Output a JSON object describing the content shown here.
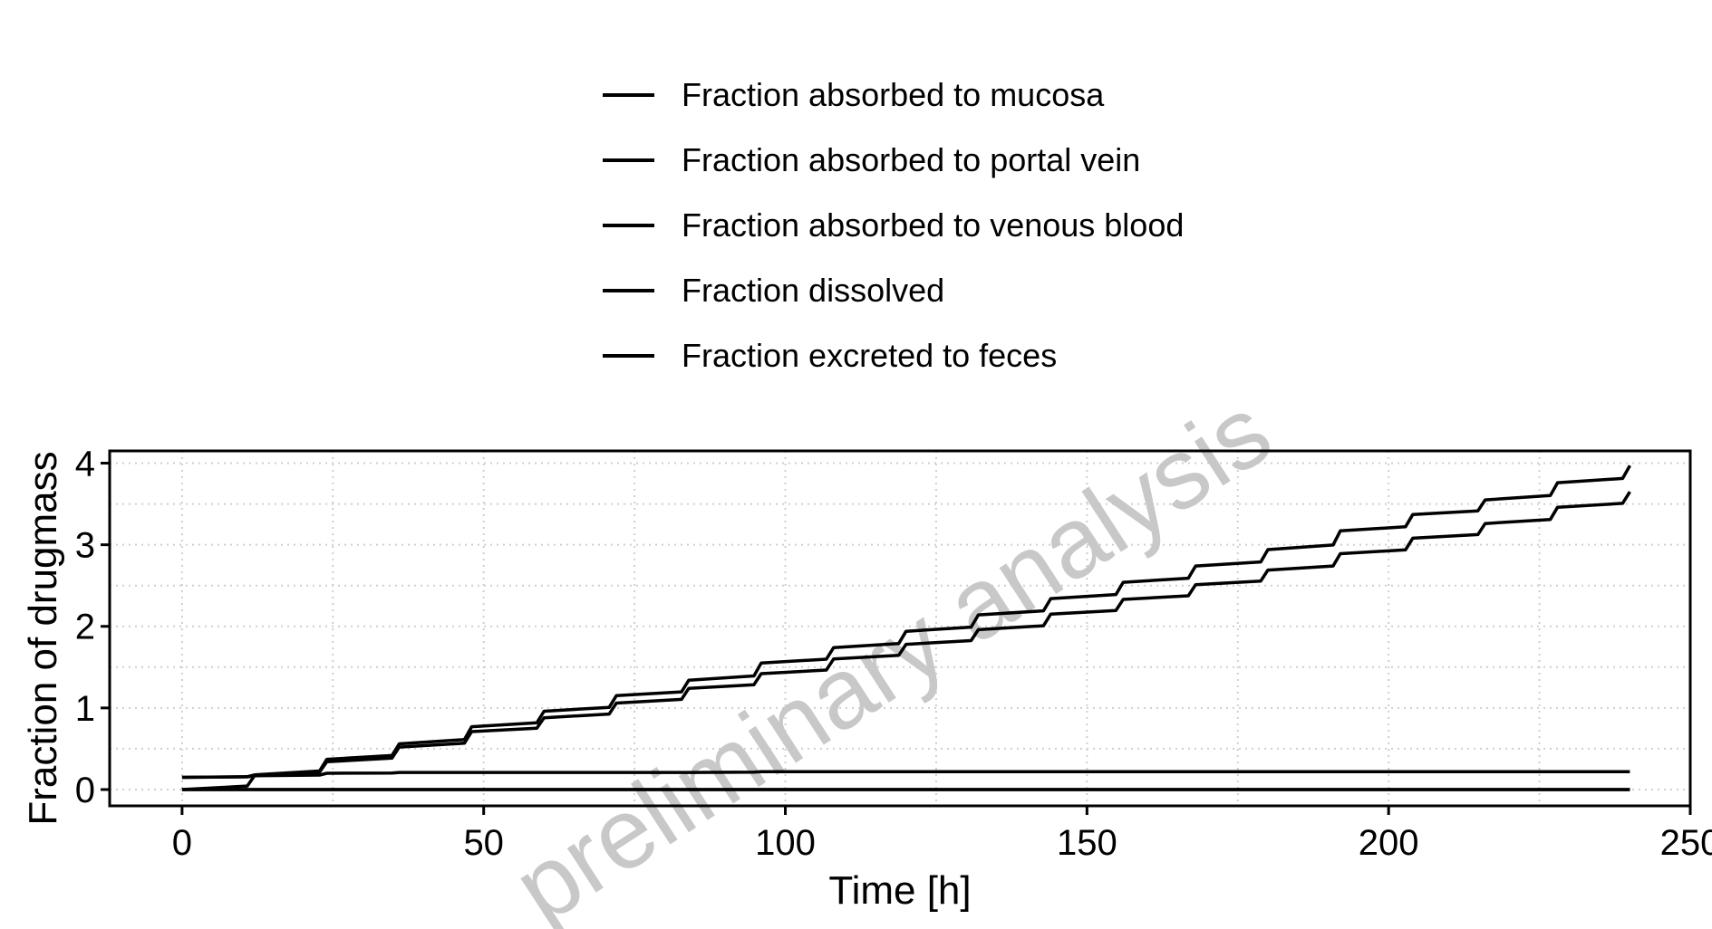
{
  "chart_data": {
    "type": "line",
    "xlabel": "Time [h]",
    "ylabel": "Fraction of drugmass",
    "xlim": [
      -12,
      250
    ],
    "ylim": [
      -0.2,
      4.15
    ],
    "x_ticks": [
      0,
      50,
      100,
      150,
      200,
      250
    ],
    "y_ticks": [
      0,
      1,
      2,
      3,
      4
    ],
    "x_tick_labels": [
      "0",
      "50",
      "100",
      "150",
      "200",
      "250"
    ],
    "y_tick_labels": [
      "0",
      "1",
      "2",
      "3",
      "4"
    ],
    "grid": true,
    "legend_position": "top",
    "watermark": "preliminary analysis",
    "legend": [
      "Fraction absorbed to mucosa",
      "Fraction absorbed to portal vein",
      "Fraction absorbed to venous blood",
      "Fraction dissolved",
      "Fraction excreted to feces"
    ],
    "series": [
      {
        "name": "Fraction absorbed to mucosa",
        "color": "#000000",
        "x": [
          0,
          12,
          24,
          36,
          48,
          60,
          72,
          84,
          96,
          108,
          120,
          132,
          144,
          156,
          168,
          180,
          192,
          204,
          216,
          228,
          240
        ],
        "values": [
          0.15,
          0.18,
          0.37,
          0.56,
          0.77,
          0.96,
          1.15,
          1.34,
          1.55,
          1.74,
          1.94,
          2.14,
          2.34,
          2.54,
          2.74,
          2.94,
          3.17,
          3.37,
          3.55,
          3.76,
          3.97
        ]
      },
      {
        "name": "Fraction absorbed to portal vein",
        "color": "#000000",
        "x": [
          0,
          12,
          24,
          36,
          48,
          60,
          72,
          84,
          96,
          108,
          120,
          132,
          144,
          156,
          168,
          180,
          192,
          204,
          216,
          228,
          240
        ],
        "values": [
          0.15,
          0.17,
          0.34,
          0.52,
          0.71,
          0.88,
          1.06,
          1.24,
          1.42,
          1.6,
          1.78,
          1.96,
          2.15,
          2.33,
          2.51,
          2.69,
          2.89,
          3.08,
          3.26,
          3.46,
          3.65
        ]
      },
      {
        "name": "Fraction absorbed to venous blood",
        "color": "#000000",
        "x": [
          0,
          12,
          24,
          36,
          48,
          60,
          72,
          84,
          96,
          108,
          120,
          132,
          144,
          156,
          168,
          180,
          192,
          204,
          216,
          228,
          240
        ],
        "values": [
          0.0,
          0.0,
          0.0,
          0.0,
          0.0,
          0.0,
          0.0,
          0.0,
          0.0,
          0.0,
          0.0,
          0.0,
          0.0,
          0.0,
          0.0,
          0.0,
          0.0,
          0.0,
          0.0,
          0.0,
          0.0
        ]
      },
      {
        "name": "Fraction dissolved",
        "color": "#000000",
        "x": [
          0,
          12,
          24,
          36,
          48,
          60,
          72,
          84,
          96,
          108,
          120,
          132,
          144,
          156,
          168,
          180,
          192,
          204,
          216,
          228,
          240
        ],
        "values": [
          0.0,
          0.17,
          0.2,
          0.21,
          0.21,
          0.21,
          0.21,
          0.21,
          0.22,
          0.22,
          0.22,
          0.22,
          0.22,
          0.22,
          0.22,
          0.22,
          0.22,
          0.22,
          0.22,
          0.22,
          0.22
        ]
      },
      {
        "name": "Fraction excreted to feces",
        "color": "#000000",
        "x": [
          0,
          12,
          24,
          36,
          48,
          60,
          72,
          84,
          96,
          108,
          120,
          132,
          144,
          156,
          168,
          180,
          192,
          204,
          216,
          228,
          240
        ],
        "values": [
          0.0,
          0.0,
          0.0,
          0.0,
          0.0,
          0.0,
          0.0,
          0.0,
          0.0,
          0.0,
          0.0,
          0.0,
          0.0,
          0.0,
          0.0,
          0.0,
          0.0,
          0.0,
          0.0,
          0.0,
          0.0
        ]
      }
    ]
  }
}
